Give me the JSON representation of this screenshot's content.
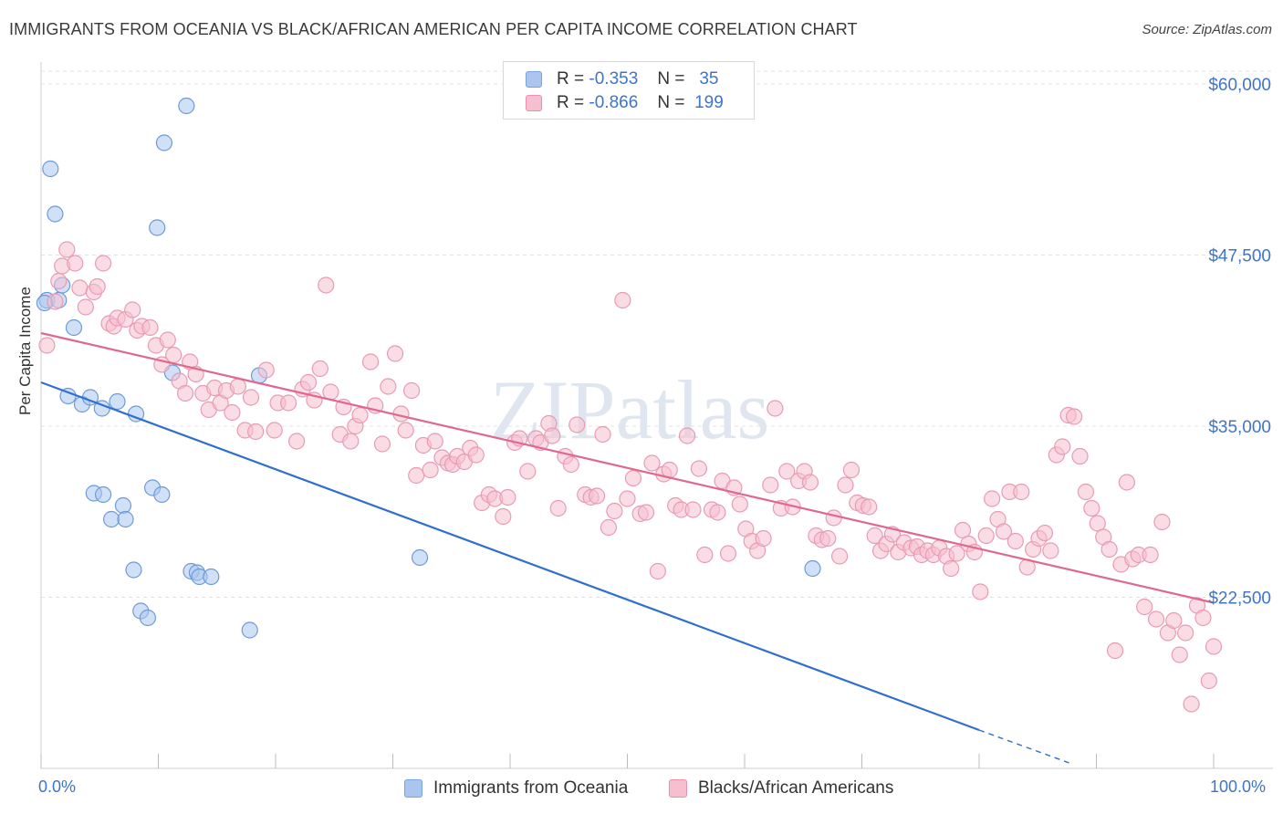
{
  "title": "IMMIGRANTS FROM OCEANIA VS BLACK/AFRICAN AMERICAN PER CAPITA INCOME CORRELATION CHART",
  "source": "Source: ZipAtlas.com",
  "watermark": "ZIPatlas",
  "colors": {
    "blue": "#3f74c9",
    "blue_fill": "#aac6ee",
    "blue_line": "#2f6fd0",
    "pink": "#e07095",
    "pink_fill": "#f5bfd0",
    "pink_line": "#e06890",
    "grid": "#e3e3e3",
    "axis_text": "#3f74c9"
  },
  "legend": {
    "series": [
      {
        "r_label": "R =",
        "r_value": "-0.353",
        "n_label": "N =",
        "n_value": "35",
        "color": "blue"
      },
      {
        "r_label": "R =",
        "r_value": "-0.866",
        "n_label": "N =",
        "n_value": "199",
        "color": "pink"
      }
    ]
  },
  "bottom_legend": [
    {
      "label": "Immigrants from Oceania",
      "color": "blue"
    },
    {
      "label": "Blacks/African Americans",
      "color": "pink"
    }
  ],
  "chart_data": {
    "type": "scatter",
    "title": "IMMIGRANTS FROM OCEANIA VS BLACK/AFRICAN AMERICAN PER CAPITA INCOME CORRELATION CHART",
    "xlabel": "",
    "ylabel": "Per Capita Income",
    "x_tick_labels": [
      "0.0%",
      "100.0%"
    ],
    "y_tick_labels": [
      "$60,000",
      "$47,500",
      "$35,000",
      "$22,500"
    ],
    "y_ticks": [
      60000,
      47500,
      35000,
      22500
    ],
    "xlim": [
      0,
      100
    ],
    "ylim": [
      10000,
      62000
    ],
    "grid": true,
    "series": [
      {
        "name": "Immigrants from Oceania",
        "color": "blue",
        "trend": {
          "x0": 0,
          "y0": 38200,
          "x1": 80,
          "y1": 12800,
          "dash_to_x": 88,
          "dash_to_y": 10300
        },
        "points": [
          [
            0.5,
            44200
          ],
          [
            0.8,
            53800
          ],
          [
            1.2,
            50500
          ],
          [
            1.5,
            44200
          ],
          [
            1.8,
            45300
          ],
          [
            2.8,
            42200
          ],
          [
            2.3,
            37200
          ],
          [
            3.5,
            36600
          ],
          [
            4.2,
            37100
          ],
          [
            5.2,
            36300
          ],
          [
            6.5,
            36800
          ],
          [
            8.1,
            35900
          ],
          [
            4.5,
            30100
          ],
          [
            5.3,
            30000
          ],
          [
            6.0,
            28200
          ],
          [
            7.0,
            29200
          ],
          [
            7.2,
            28200
          ],
          [
            9.5,
            30500
          ],
          [
            10.3,
            30000
          ],
          [
            7.9,
            24500
          ],
          [
            8.5,
            21500
          ],
          [
            9.1,
            21000
          ],
          [
            9.9,
            49500
          ],
          [
            10.5,
            55700
          ],
          [
            12.4,
            58400
          ],
          [
            11.2,
            38900
          ],
          [
            12.8,
            24400
          ],
          [
            13.3,
            24300
          ],
          [
            13.5,
            24000
          ],
          [
            14.5,
            24000
          ],
          [
            17.8,
            20100
          ],
          [
            18.6,
            38700
          ],
          [
            32.3,
            25400
          ],
          [
            65.8,
            24600
          ],
          [
            0.3,
            44000
          ]
        ]
      },
      {
        "name": "Blacks/African Americans",
        "color": "pink",
        "trend": {
          "x0": 0,
          "y0": 41800,
          "x1": 100,
          "y1": 22100
        },
        "points": [
          [
            0.5,
            40900
          ],
          [
            1.2,
            44100
          ],
          [
            1.5,
            45600
          ],
          [
            1.8,
            46700
          ],
          [
            2.2,
            47900
          ],
          [
            2.9,
            46900
          ],
          [
            3.3,
            45100
          ],
          [
            3.8,
            43700
          ],
          [
            4.5,
            44800
          ],
          [
            4.8,
            45200
          ],
          [
            5.3,
            46900
          ],
          [
            5.8,
            42500
          ],
          [
            6.2,
            42300
          ],
          [
            6.5,
            42900
          ],
          [
            7.2,
            42800
          ],
          [
            7.8,
            43500
          ],
          [
            8.2,
            42000
          ],
          [
            8.6,
            42300
          ],
          [
            9.3,
            42200
          ],
          [
            9.8,
            40900
          ],
          [
            10.3,
            39500
          ],
          [
            10.8,
            41300
          ],
          [
            11.3,
            40200
          ],
          [
            11.8,
            38300
          ],
          [
            12.3,
            37400
          ],
          [
            12.7,
            39700
          ],
          [
            13.2,
            38800
          ],
          [
            13.8,
            37400
          ],
          [
            14.3,
            36200
          ],
          [
            14.8,
            37800
          ],
          [
            15.3,
            36700
          ],
          [
            15.8,
            37600
          ],
          [
            16.3,
            36000
          ],
          [
            16.8,
            37900
          ],
          [
            17.4,
            34700
          ],
          [
            17.9,
            37100
          ],
          [
            18.3,
            34600
          ],
          [
            19.2,
            39100
          ],
          [
            19.9,
            34700
          ],
          [
            20.2,
            36700
          ],
          [
            21.1,
            36700
          ],
          [
            21.8,
            33900
          ],
          [
            22.3,
            37700
          ],
          [
            22.8,
            38200
          ],
          [
            23.3,
            36900
          ],
          [
            23.8,
            39200
          ],
          [
            24.3,
            45300
          ],
          [
            24.7,
            37500
          ],
          [
            25.5,
            34400
          ],
          [
            25.8,
            36400
          ],
          [
            26.4,
            33900
          ],
          [
            26.8,
            35000
          ],
          [
            27.2,
            35800
          ],
          [
            28.1,
            39700
          ],
          [
            28.5,
            36500
          ],
          [
            29.1,
            33700
          ],
          [
            29.6,
            37900
          ],
          [
            30.2,
            40300
          ],
          [
            30.7,
            35900
          ],
          [
            31.1,
            34700
          ],
          [
            31.6,
            37600
          ],
          [
            32.0,
            31400
          ],
          [
            32.6,
            33600
          ],
          [
            33.2,
            31800
          ],
          [
            33.6,
            33900
          ],
          [
            34.2,
            32700
          ],
          [
            34.7,
            32300
          ],
          [
            35.1,
            32200
          ],
          [
            35.5,
            32800
          ],
          [
            36.1,
            32400
          ],
          [
            36.6,
            33400
          ],
          [
            37.1,
            32900
          ],
          [
            37.6,
            29400
          ],
          [
            38.2,
            30000
          ],
          [
            38.7,
            29700
          ],
          [
            39.4,
            28400
          ],
          [
            39.8,
            29800
          ],
          [
            40.4,
            33800
          ],
          [
            40.8,
            34100
          ],
          [
            41.5,
            31700
          ],
          [
            42.2,
            34100
          ],
          [
            42.6,
            33800
          ],
          [
            43.3,
            35200
          ],
          [
            43.6,
            34300
          ],
          [
            44.1,
            29000
          ],
          [
            44.7,
            32800
          ],
          [
            45.2,
            32200
          ],
          [
            45.7,
            35100
          ],
          [
            46.4,
            30000
          ],
          [
            46.9,
            29800
          ],
          [
            47.4,
            29900
          ],
          [
            47.9,
            34400
          ],
          [
            48.4,
            27600
          ],
          [
            48.9,
            28800
          ],
          [
            49.6,
            44200
          ],
          [
            50.0,
            29700
          ],
          [
            50.5,
            31200
          ],
          [
            51.1,
            28600
          ],
          [
            51.6,
            28700
          ],
          [
            52.1,
            32300
          ],
          [
            52.6,
            24400
          ],
          [
            53.1,
            31500
          ],
          [
            53.6,
            31800
          ],
          [
            54.1,
            29200
          ],
          [
            54.6,
            28900
          ],
          [
            55.1,
            34300
          ],
          [
            55.6,
            28900
          ],
          [
            56.1,
            31900
          ],
          [
            56.6,
            25600
          ],
          [
            57.2,
            28900
          ],
          [
            57.7,
            28700
          ],
          [
            58.1,
            31000
          ],
          [
            58.6,
            25700
          ],
          [
            59.1,
            30500
          ],
          [
            59.6,
            29300
          ],
          [
            60.1,
            27500
          ],
          [
            60.6,
            26600
          ],
          [
            61.1,
            25900
          ],
          [
            61.6,
            26800
          ],
          [
            62.2,
            30700
          ],
          [
            62.6,
            36300
          ],
          [
            63.1,
            29000
          ],
          [
            63.6,
            31700
          ],
          [
            64.1,
            29100
          ],
          [
            64.6,
            31000
          ],
          [
            65.1,
            31700
          ],
          [
            65.6,
            30900
          ],
          [
            66.1,
            27000
          ],
          [
            66.6,
            26700
          ],
          [
            67.1,
            26800
          ],
          [
            67.6,
            28300
          ],
          [
            68.1,
            25500
          ],
          [
            68.6,
            30700
          ],
          [
            69.1,
            31800
          ],
          [
            69.6,
            29400
          ],
          [
            70.1,
            29200
          ],
          [
            70.6,
            29100
          ],
          [
            71.1,
            27000
          ],
          [
            71.6,
            25900
          ],
          [
            72.1,
            26400
          ],
          [
            72.6,
            27100
          ],
          [
            73.1,
            25800
          ],
          [
            73.6,
            26500
          ],
          [
            74.2,
            26100
          ],
          [
            74.7,
            26200
          ],
          [
            75.1,
            25600
          ],
          [
            75.6,
            25900
          ],
          [
            76.1,
            25600
          ],
          [
            76.6,
            26100
          ],
          [
            77.2,
            25500
          ],
          [
            77.6,
            24600
          ],
          [
            78.1,
            25700
          ],
          [
            78.6,
            27400
          ],
          [
            79.1,
            26400
          ],
          [
            79.6,
            25800
          ],
          [
            80.1,
            22900
          ],
          [
            80.6,
            27000
          ],
          [
            81.1,
            29700
          ],
          [
            81.6,
            28200
          ],
          [
            82.1,
            27300
          ],
          [
            82.6,
            30200
          ],
          [
            83.1,
            26600
          ],
          [
            83.6,
            30200
          ],
          [
            84.1,
            24700
          ],
          [
            84.6,
            26000
          ],
          [
            85.1,
            26800
          ],
          [
            85.6,
            27200
          ],
          [
            86.1,
            25900
          ],
          [
            86.6,
            32900
          ],
          [
            87.1,
            33500
          ],
          [
            87.6,
            35800
          ],
          [
            88.1,
            35700
          ],
          [
            88.6,
            32800
          ],
          [
            89.1,
            30200
          ],
          [
            89.6,
            29000
          ],
          [
            90.1,
            27900
          ],
          [
            90.6,
            26900
          ],
          [
            91.1,
            26000
          ],
          [
            91.6,
            18600
          ],
          [
            92.1,
            24900
          ],
          [
            92.6,
            30900
          ],
          [
            93.1,
            25300
          ],
          [
            93.6,
            25600
          ],
          [
            94.1,
            21800
          ],
          [
            94.6,
            25600
          ],
          [
            95.1,
            20900
          ],
          [
            95.6,
            28000
          ],
          [
            96.1,
            19900
          ],
          [
            96.6,
            20800
          ],
          [
            97.1,
            18300
          ],
          [
            97.6,
            19900
          ],
          [
            98.1,
            14700
          ],
          [
            98.6,
            21900
          ],
          [
            99.1,
            21000
          ],
          [
            99.6,
            16400
          ],
          [
            100.0,
            18900
          ]
        ]
      }
    ]
  }
}
